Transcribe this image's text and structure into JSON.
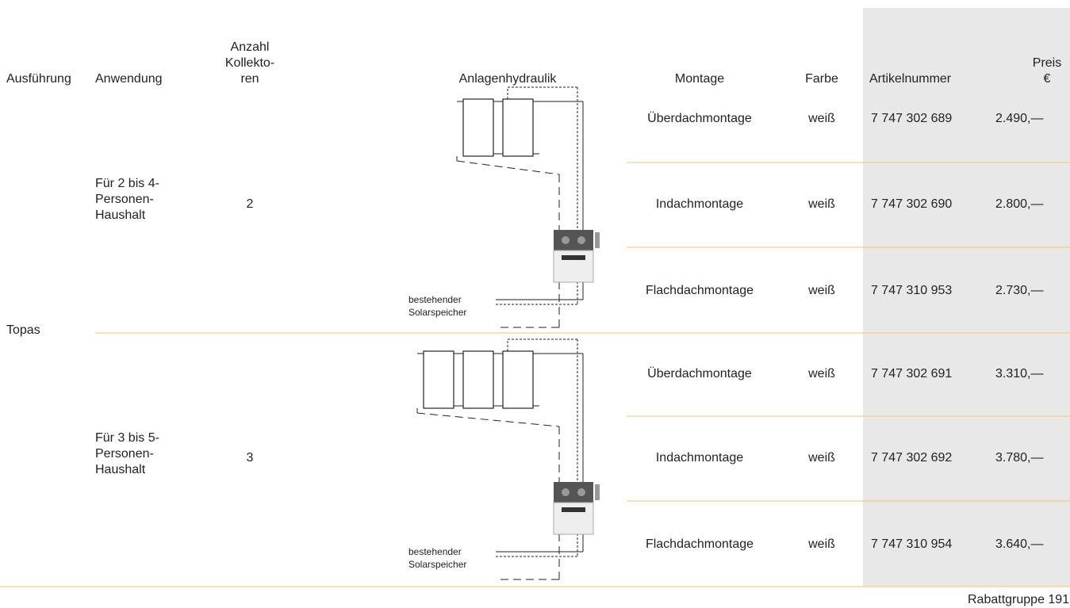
{
  "header": {
    "ausfuehrung": "Ausführung",
    "anwendung": "Anwendung",
    "anzahl": [
      "Anzahl",
      "Kollekto-",
      "ren"
    ],
    "anlagenhydraulik": "Anlagenhydraulik",
    "montage": "Montage",
    "farbe": "Farbe",
    "artikelnummer": "Artikelnummer",
    "preis": [
      "Preis",
      "€"
    ]
  },
  "product": "Topas",
  "groups": [
    {
      "anwendung": [
        "Für 2 bis 4-",
        "Personen-",
        "Haushalt"
      ],
      "anzahl": "2",
      "diagram_labels": [
        "bestehender",
        "Solarspeicher"
      ],
      "rows": [
        [
          "Überdachmontage",
          "weiß",
          "7 747 302 689",
          "2.490,—"
        ],
        [
          "Indachmontage",
          "weiß",
          "7 747 302 690",
          "2.800,—"
        ],
        [
          "Flachdachmontage",
          "weiß",
          "7 747 310 953",
          "2.730,—"
        ]
      ]
    },
    {
      "anwendung": [
        "Für 3 bis 5-",
        "Personen-",
        "Haushalt"
      ],
      "anzahl": "3",
      "diagram_labels": [
        "bestehender",
        "Solarspeicher"
      ],
      "rows": [
        [
          "Überdachmontage",
          "weiß",
          "7 747 302 691",
          "3.310,—"
        ],
        [
          "Indachmontage",
          "weiß",
          "7 747 302 692",
          "3.780,—"
        ],
        [
          "Flachdachmontage",
          "weiß",
          "7 747 310 954",
          "3.640,—"
        ]
      ]
    }
  ],
  "footer": "Rabattgruppe 191"
}
